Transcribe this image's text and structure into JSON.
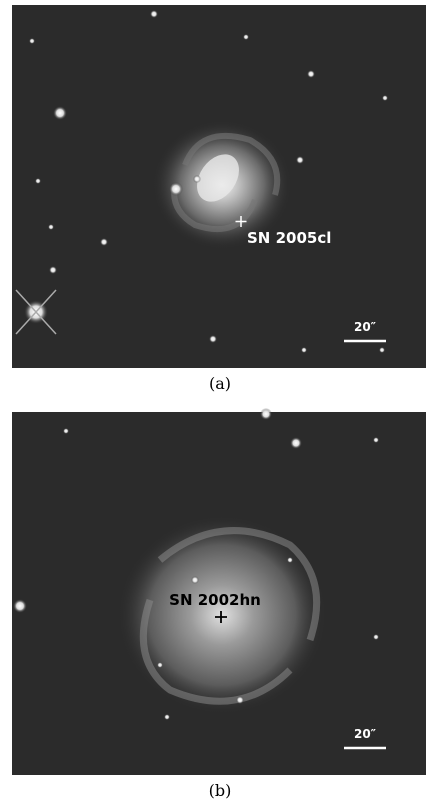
{
  "panels": [
    {
      "annotation": "SN 2005cl",
      "scale_label": "20″",
      "caption": "(a)"
    },
    {
      "annotation": "SN 2002hn",
      "scale_label": "20″",
      "caption": "(b)"
    }
  ]
}
